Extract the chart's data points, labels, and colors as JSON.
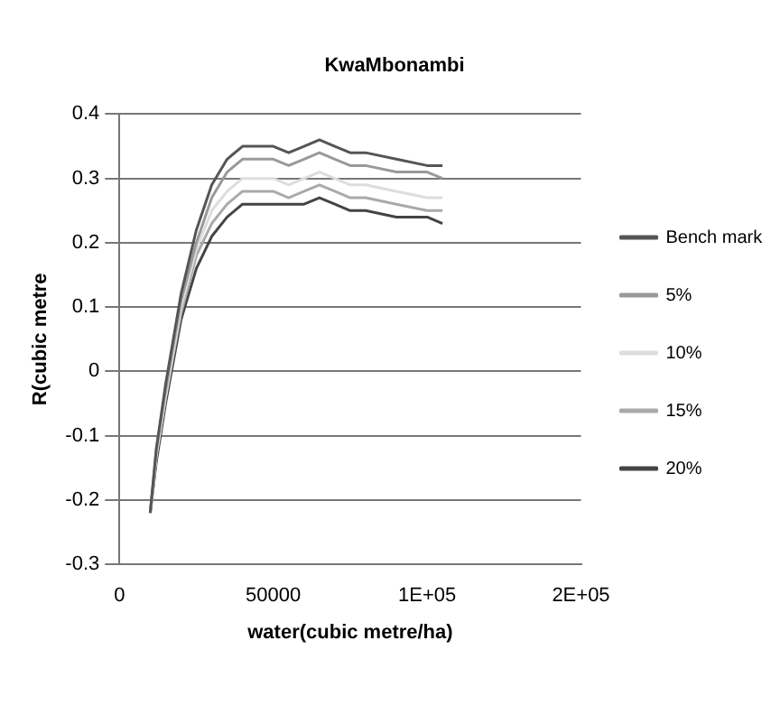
{
  "chart_data": {
    "type": "line",
    "title": "KwaMbonambi",
    "xlabel": "water(cubic metre/ha)",
    "ylabel": "R(cubic metre",
    "x": [
      10000,
      12000,
      15000,
      20000,
      25000,
      30000,
      35000,
      40000,
      45000,
      50000,
      55000,
      60000,
      65000,
      70000,
      75000,
      80000,
      90000,
      100000,
      105000
    ],
    "series": [
      {
        "name": "Bench mark",
        "color": "#555555",
        "values": [
          -0.22,
          -0.12,
          -0.02,
          0.12,
          0.22,
          0.29,
          0.33,
          0.35,
          0.35,
          0.35,
          0.34,
          0.35,
          0.36,
          0.35,
          0.34,
          0.34,
          0.33,
          0.32,
          0.32
        ]
      },
      {
        "name": "5%",
        "color": "#999999",
        "values": [
          -0.22,
          -0.12,
          -0.03,
          0.11,
          0.2,
          0.27,
          0.31,
          0.33,
          0.33,
          0.33,
          0.32,
          0.33,
          0.34,
          0.33,
          0.32,
          0.32,
          0.31,
          0.31,
          0.3
        ]
      },
      {
        "name": "10%",
        "color": "#dddddd",
        "values": [
          -0.22,
          -0.13,
          -0.04,
          0.1,
          0.19,
          0.25,
          0.28,
          0.3,
          0.3,
          0.3,
          0.29,
          0.3,
          0.31,
          0.3,
          0.29,
          0.29,
          0.28,
          0.27,
          0.27
        ]
      },
      {
        "name": "15%",
        "color": "#aaaaaa",
        "values": [
          -0.22,
          -0.13,
          -0.04,
          0.09,
          0.18,
          0.23,
          0.26,
          0.28,
          0.28,
          0.28,
          0.27,
          0.28,
          0.29,
          0.28,
          0.27,
          0.27,
          0.26,
          0.25,
          0.25
        ]
      },
      {
        "name": "20%",
        "color": "#444444",
        "values": [
          -0.22,
          -0.14,
          -0.05,
          0.08,
          0.16,
          0.21,
          0.24,
          0.26,
          0.26,
          0.26,
          0.26,
          0.26,
          0.27,
          0.26,
          0.25,
          0.25,
          0.24,
          0.24,
          0.23
        ]
      }
    ],
    "xlim": [
      0,
      150000
    ],
    "xticks": [
      0,
      50000,
      {
        "value": 100000,
        "label": "1E+05"
      },
      {
        "value": 150000,
        "label": "2E+05"
      }
    ],
    "ylim": [
      -0.3,
      0.4
    ],
    "yticks": [
      -0.3,
      -0.2,
      -0.1,
      0,
      0.1,
      0.2,
      0.3,
      0.4
    ],
    "grid": "y",
    "legend": "right",
    "marker": "none",
    "line_style": "solid"
  }
}
